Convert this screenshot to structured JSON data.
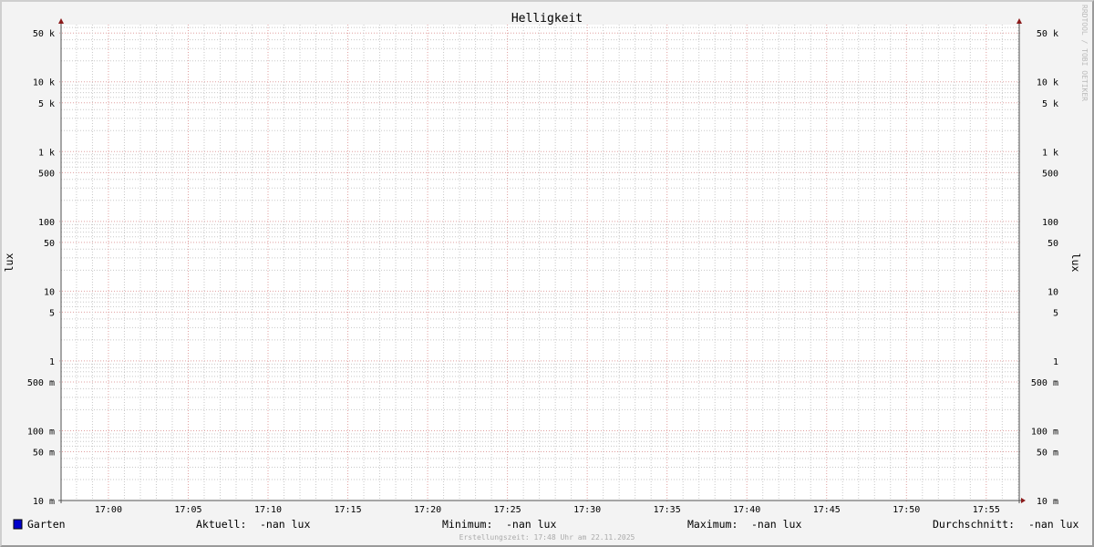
{
  "chart_data": {
    "type": "line",
    "title": "Helligkeit",
    "ylabel": "lux",
    "ylabel_right": "lux",
    "y_scale": "log",
    "ylim": [
      0.01,
      66000
    ],
    "x_range": [
      "16:57",
      "17:57"
    ],
    "x_ticks": [
      "17:00",
      "17:05",
      "17:10",
      "17:15",
      "17:20",
      "17:25",
      "17:30",
      "17:35",
      "17:40",
      "17:45",
      "17:50",
      "17:55"
    ],
    "y_ticks": [
      {
        "value": 50000,
        "label": "50 k"
      },
      {
        "value": 10000,
        "label": "10 k"
      },
      {
        "value": 5000,
        "label": "5 k"
      },
      {
        "value": 1000,
        "label": "1 k"
      },
      {
        "value": 500,
        "label": "500"
      },
      {
        "value": 100,
        "label": "100"
      },
      {
        "value": 50,
        "label": "50"
      },
      {
        "value": 10,
        "label": "10"
      },
      {
        "value": 5,
        "label": "5"
      },
      {
        "value": 1,
        "label": "1"
      },
      {
        "value": 0.5,
        "label": "500 m"
      },
      {
        "value": 0.1,
        "label": "100 m"
      },
      {
        "value": 0.05,
        "label": "50 m"
      },
      {
        "value": 0.01,
        "label": "10 m"
      }
    ],
    "grid": true,
    "series": [
      {
        "name": "Garten",
        "color": "#0000cc",
        "values": []
      }
    ],
    "legend": {
      "series_name": "Garten",
      "current_label": "Aktuell:",
      "current_value": "-nan lux",
      "min_label": "Minimum:",
      "min_value": "-nan lux",
      "max_label": "Maximum:",
      "max_value": "-nan lux",
      "avg_label": "Durchschnitt:",
      "avg_value": "-nan lux"
    },
    "footer": "Erstellungszeit: 17:48 Uhr am 22.11.2025",
    "watermark": "RRDTOOL / TOBI OETIKER",
    "colors": {
      "major_grid": "#e0a0a0",
      "minor_grid": "#c8c8c8",
      "axis": "#505050",
      "arrow": "#8b1a1a"
    }
  }
}
